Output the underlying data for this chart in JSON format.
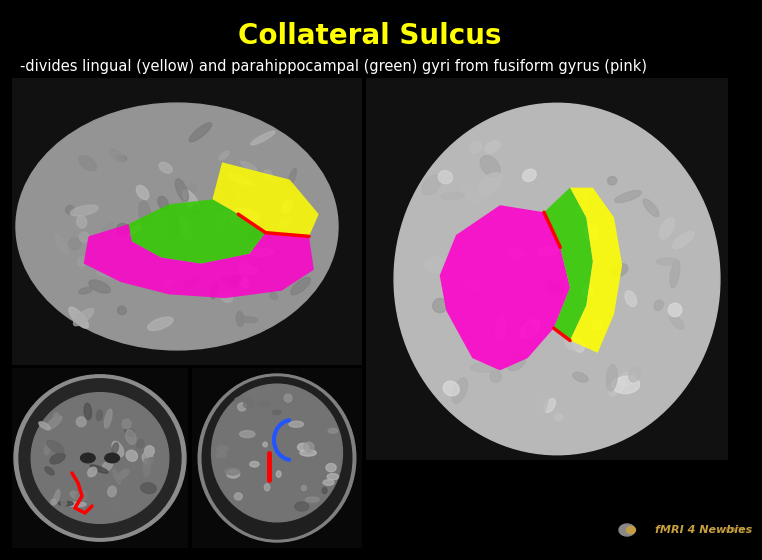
{
  "title": "Collateral Sulcus",
  "title_color": "#FFFF00",
  "title_fontsize": 20,
  "subtitle": "-divides lingual (yellow) and parahippocampal (green) gyri from fusiform gyrus (pink)",
  "subtitle_color": "#FFFFFF",
  "subtitle_fontsize": 10.5,
  "background_color": "#000000",
  "watermark_text": "fMRI 4 Newbies",
  "watermark_color": "#C8A040",
  "watermark_fontsize": 8,
  "yellow_color": "#FFFF00",
  "green_color": "#33CC00",
  "pink_color": "#FF00CC",
  "red_color": "#FF0000",
  "blue_color": "#2255FF",
  "brain_gray": "#909090",
  "brain_dark": "#404040",
  "brain_mid": "#666666"
}
